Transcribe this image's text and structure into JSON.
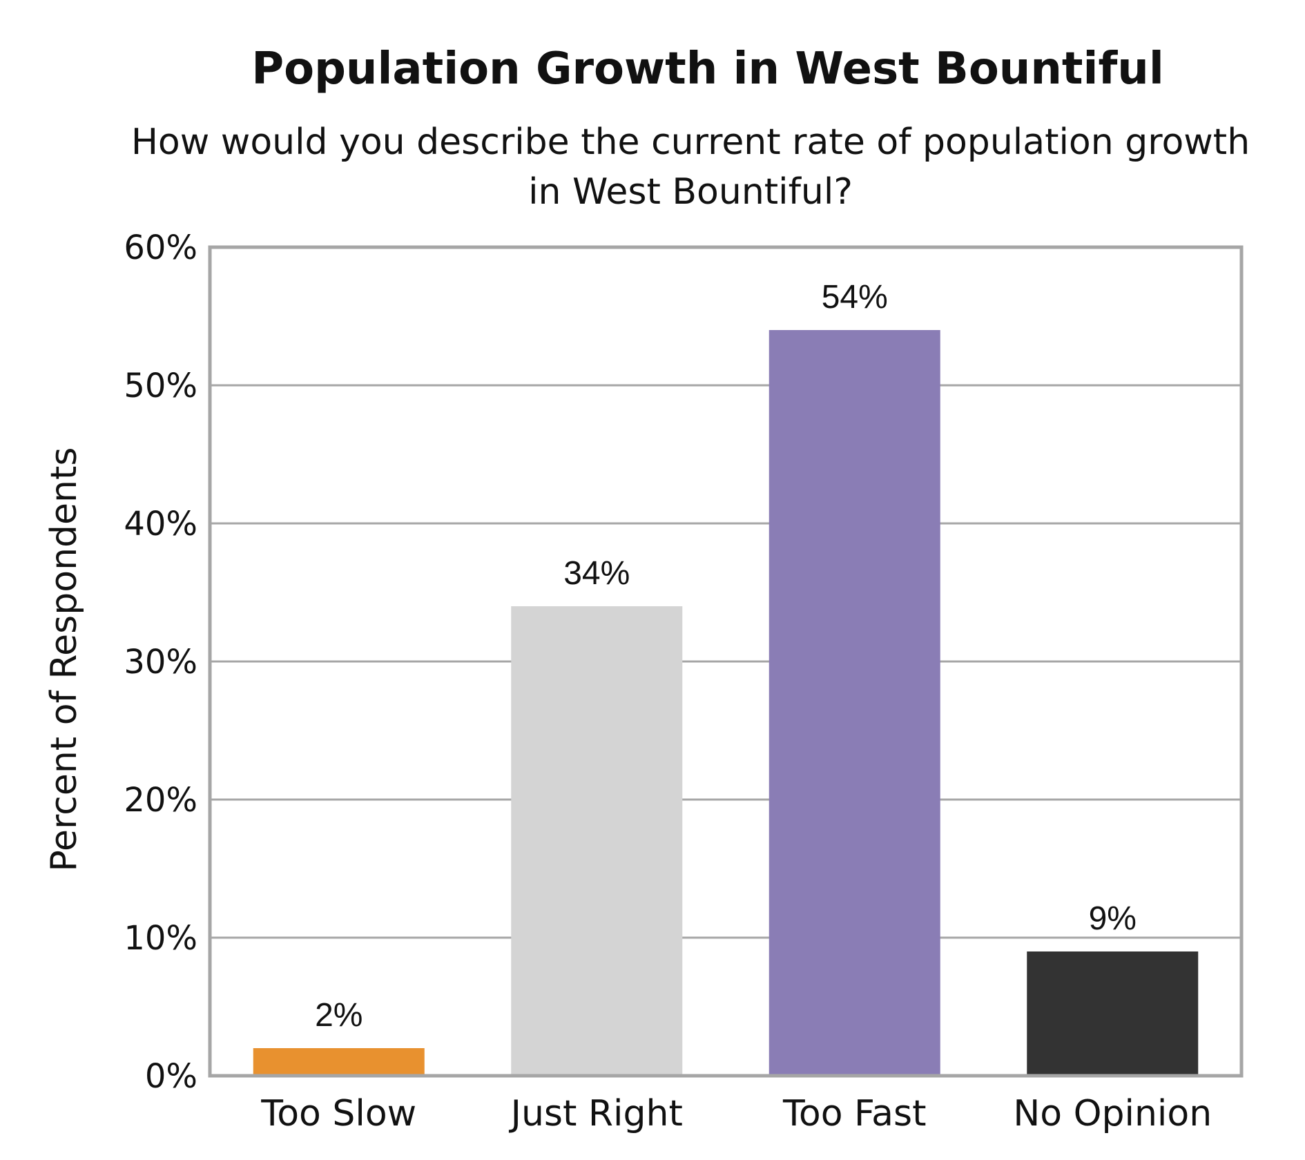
{
  "chart_data": {
    "type": "bar",
    "title": "Population Growth in West Bountiful",
    "subtitle": "How would you describe the current rate of population growth in West Bountiful?",
    "xlabel": "",
    "ylabel": "Percent of Respondents",
    "categories": [
      "Too Slow",
      "Just Right",
      "Too Fast",
      "No Opinion"
    ],
    "values": [
      2,
      34,
      54,
      9
    ],
    "value_labels": [
      "2%",
      "34%",
      "54%",
      "9%"
    ],
    "bar_colors": [
      "#E8912F",
      "#D4D4D4",
      "#8A7DB5",
      "#333333"
    ],
    "ylim": [
      0,
      60
    ],
    "yticks": [
      0,
      10,
      20,
      30,
      40,
      50,
      60
    ],
    "ytick_labels": [
      "0%",
      "10%",
      "20%",
      "30%",
      "40%",
      "50%",
      "60%"
    ],
    "grid": true,
    "legend": "none"
  },
  "colors": {
    "gridline": "#A6A6A6",
    "frame": "#A6A6A6",
    "text": "#111111"
  }
}
